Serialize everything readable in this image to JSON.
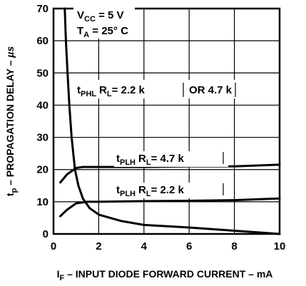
{
  "chart_data": {
    "type": "line",
    "xlabel": "I_F – INPUT DIODE FORWARD CURRENT – mA",
    "ylabel": "t_p – PROPAGATION DELAY – µs",
    "xlim": [
      0,
      10
    ],
    "ylim": [
      0,
      70
    ],
    "x_ticks": [
      0,
      2,
      4,
      6,
      8,
      10
    ],
    "y_ticks": [
      0,
      10,
      20,
      30,
      40,
      50,
      60,
      70
    ],
    "grid": true,
    "conditions": {
      "vcc": {
        "main": "V",
        "sub": "CC",
        "rest": " = 5 V"
      },
      "ta": {
        "main": "T",
        "sub": "A",
        "rest": " = 25° C"
      }
    },
    "series": [
      {
        "name": "tPHL RL = 2.2 k OR 4.7 k",
        "points": [
          [
            0.5,
            70
          ],
          [
            0.55,
            60
          ],
          [
            0.62,
            50
          ],
          [
            0.7,
            40
          ],
          [
            0.8,
            30
          ],
          [
            0.95,
            20
          ],
          [
            1.1,
            15
          ],
          [
            1.3,
            11
          ],
          [
            1.6,
            8
          ],
          [
            2,
            6
          ],
          [
            3,
            4
          ],
          [
            4,
            2.8
          ],
          [
            6,
            2
          ],
          [
            8,
            1
          ],
          [
            10,
            0
          ]
        ]
      },
      {
        "name": "tPLH RL = 4.7 k",
        "points": [
          [
            0.3,
            16
          ],
          [
            0.6,
            18.5
          ],
          [
            1,
            20.5
          ],
          [
            1.3,
            20.8
          ],
          [
            2,
            20.8
          ],
          [
            4,
            20.8
          ],
          [
            6,
            21
          ],
          [
            8,
            21
          ],
          [
            10,
            21.5
          ]
        ]
      },
      {
        "name": "tPLH RL = 2.2 k",
        "points": [
          [
            0.3,
            5.5
          ],
          [
            0.6,
            7.5
          ],
          [
            1,
            9.5
          ],
          [
            1.5,
            10
          ],
          [
            2,
            10
          ],
          [
            4,
            10.2
          ],
          [
            6,
            10.3
          ],
          [
            8,
            10.5
          ],
          [
            10,
            11
          ]
        ]
      }
    ],
    "annotations": {
      "tphl": {
        "t": "t",
        "sub": "PHL",
        "r": "R",
        "rsub": "L",
        "value": "= 2.2 k",
        "extra": "OR 4.7 k"
      },
      "tplh_47": {
        "t": "t",
        "sub": "PLH",
        "r": "R",
        "rsub": "L",
        "value": "=  4.7 k"
      },
      "tplh_22": {
        "t": "t",
        "sub": "PLH",
        "r": "R",
        "rsub": "L",
        "value": "=  2.2 k"
      }
    },
    "axis_titles": {
      "x": {
        "main": "I",
        "sub": "F",
        "rest": " – INPUT DIODE FORWARD CURRENT – mA"
      },
      "y": {
        "main": "t",
        "sub": "p",
        "rest": " – PROPAGATION DELAY – ",
        "unit": "µs"
      }
    }
  }
}
